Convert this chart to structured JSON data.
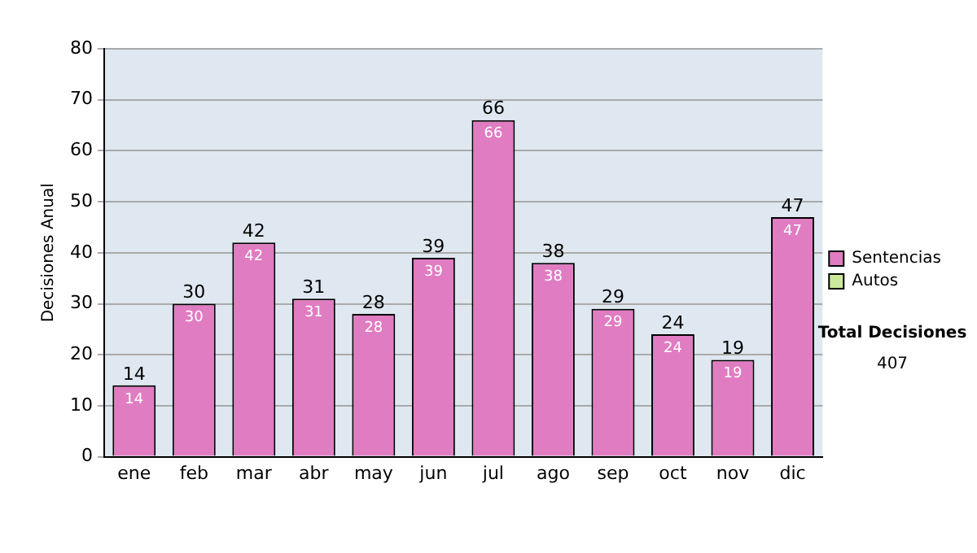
{
  "chart_data": {
    "type": "bar",
    "ylabel": "Decisiones Anual",
    "categories": [
      "ene",
      "feb",
      "mar",
      "abr",
      "may",
      "jun",
      "jul",
      "ago",
      "sep",
      "oct",
      "nov",
      "dic"
    ],
    "series": [
      {
        "name": "Sentencias",
        "color": "#e07cc2",
        "values": [
          14,
          30,
          42,
          31,
          28,
          39,
          66,
          38,
          29,
          24,
          19,
          47
        ]
      },
      {
        "name": "Autos",
        "color": "#cce89a",
        "values": [
          null,
          null,
          null,
          null,
          null,
          null,
          null,
          null,
          null,
          null,
          null,
          null
        ]
      }
    ],
    "stacked": true,
    "totals": [
      "14",
      "30",
      "42",
      "31",
      "28",
      "39",
      "66",
      "38",
      "29",
      "24",
      "19",
      "47"
    ],
    "data_labels": true,
    "ylim": [
      0,
      80
    ],
    "yticks": [
      0,
      10,
      20,
      30,
      40,
      50,
      60,
      70,
      80
    ],
    "grid": "y",
    "legend": "right",
    "annotations": [
      "Total Decisiones",
      "407"
    ]
  }
}
